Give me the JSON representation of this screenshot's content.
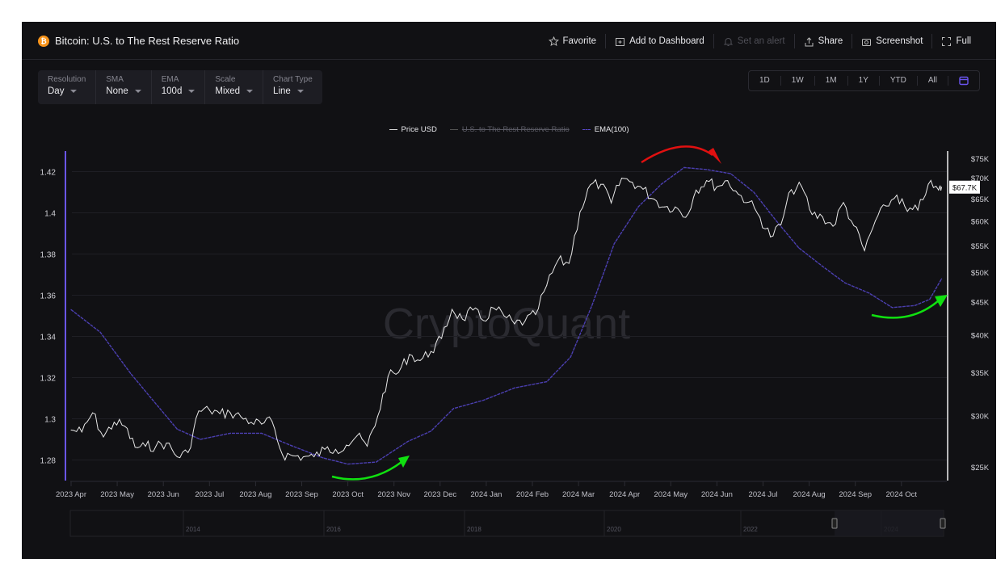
{
  "header": {
    "coin_icon": "bitcoin-icon",
    "title": "Bitcoin: U.S. to The Rest Reserve Ratio",
    "actions": [
      {
        "icon": "star-icon",
        "label": "Favorite",
        "enabled": true
      },
      {
        "icon": "folder-plus-icon",
        "label": "Add to Dashboard",
        "enabled": true
      },
      {
        "icon": "bell-icon",
        "label": "Set an alert",
        "enabled": false
      },
      {
        "icon": "share-icon",
        "label": "Share",
        "enabled": true
      },
      {
        "icon": "camera-icon",
        "label": "Screenshot",
        "enabled": true
      },
      {
        "icon": "fullscreen-icon",
        "label": "Full",
        "enabled": true
      }
    ]
  },
  "controls": [
    {
      "label": "Resolution",
      "value": "Day"
    },
    {
      "label": "SMA",
      "value": "None"
    },
    {
      "label": "EMA",
      "value": "100d"
    },
    {
      "label": "Scale",
      "value": "Mixed"
    },
    {
      "label": "Chart Type",
      "value": "Line"
    }
  ],
  "ranges": [
    "1D",
    "1W",
    "1M",
    "1Y",
    "YTD",
    "All"
  ],
  "watermark": "CryptoQuant",
  "colors": {
    "background": "#111114",
    "price": "#e8e8e8",
    "ratio": "#6a55f0",
    "ema": "#4b3fb0",
    "arrow_red": "#e01010",
    "arrow_green": "#10e010"
  },
  "chart_data": {
    "type": "line",
    "legend": [
      {
        "name": "Price USD",
        "visible": true
      },
      {
        "name": "U.S. to The Rest Reserve Ratio",
        "visible": false
      },
      {
        "name": "EMA(100)",
        "visible": true
      }
    ],
    "legend_position": "top-center",
    "x_ticks": [
      "2023 Apr",
      "2023 May",
      "2023 Jun",
      "2023 Jul",
      "2023 Aug",
      "2023 Sep",
      "2023 Oct",
      "2023 Nov",
      "2023 Dec",
      "2024 Jan",
      "2024 Feb",
      "2024 Mar",
      "2024 Apr",
      "2024 May",
      "2024 Jun",
      "2024 Jul",
      "2024 Aug",
      "2024 Sep",
      "2024 Oct"
    ],
    "left_axis": {
      "ticks": [
        "1.28",
        "1.3",
        "1.32",
        "1.34",
        "1.36",
        "1.38",
        "1.4",
        "1.42"
      ],
      "range": [
        1.27,
        1.43
      ]
    },
    "right_axis": {
      "scale": "log",
      "ticks": [
        "$25K",
        "$30K",
        "$35K",
        "$40K",
        "$45K",
        "$50K",
        "$55K",
        "$60K",
        "$65K",
        "$70K",
        "$75K"
      ],
      "range": [
        23800,
        77000
      ],
      "last_value_label": "$67.7K"
    },
    "grid": true,
    "price_usd": {
      "axis": "right",
      "dates": [
        "2023-04-01",
        "2023-04-08",
        "2023-04-15",
        "2023-04-22",
        "2023-04-29",
        "2023-05-06",
        "2023-05-13",
        "2023-05-20",
        "2023-05-27",
        "2023-06-03",
        "2023-06-10",
        "2023-06-17",
        "2023-06-24",
        "2023-07-01",
        "2023-07-08",
        "2023-07-15",
        "2023-07-22",
        "2023-07-29",
        "2023-08-05",
        "2023-08-12",
        "2023-08-19",
        "2023-08-26",
        "2023-09-02",
        "2023-09-09",
        "2023-09-16",
        "2023-09-23",
        "2023-09-30",
        "2023-10-07",
        "2023-10-14",
        "2023-10-21",
        "2023-10-28",
        "2023-11-04",
        "2023-11-11",
        "2023-11-18",
        "2023-11-25",
        "2023-12-02",
        "2023-12-09",
        "2023-12-16",
        "2023-12-23",
        "2023-12-30",
        "2024-01-06",
        "2024-01-13",
        "2024-01-20",
        "2024-01-27",
        "2024-02-03",
        "2024-02-10",
        "2024-02-17",
        "2024-02-24",
        "2024-03-02",
        "2024-03-09",
        "2024-03-16",
        "2024-03-23",
        "2024-03-30",
        "2024-04-06",
        "2024-04-13",
        "2024-04-20",
        "2024-04-27",
        "2024-05-04",
        "2024-05-11",
        "2024-05-18",
        "2024-05-25",
        "2024-06-01",
        "2024-06-08",
        "2024-06-15",
        "2024-06-22",
        "2024-06-29",
        "2024-07-06",
        "2024-07-13",
        "2024-07-20",
        "2024-07-27",
        "2024-08-03",
        "2024-08-10",
        "2024-08-17",
        "2024-08-24",
        "2024-08-31",
        "2024-09-07",
        "2024-09-14",
        "2024-09-21",
        "2024-09-28",
        "2024-10-05",
        "2024-10-12",
        "2024-10-19",
        "2024-10-26",
        "2024-10-28"
      ],
      "values": [
        28500,
        28300,
        30300,
        27800,
        29300,
        28900,
        26800,
        26900,
        26900,
        27200,
        25900,
        26300,
        30500,
        30600,
        30200,
        30300,
        29900,
        29300,
        29100,
        29400,
        26100,
        26000,
        25900,
        25900,
        26600,
        26600,
        27000,
        27900,
        26900,
        29900,
        34500,
        35000,
        37300,
        36500,
        37700,
        39500,
        43800,
        42300,
        43700,
        42100,
        44000,
        42800,
        41600,
        42000,
        43000,
        47700,
        52100,
        51600,
        62000,
        68300,
        68400,
        64000,
        69900,
        68900,
        67200,
        64900,
        63100,
        63100,
        60800,
        67000,
        69300,
        67800,
        69300,
        66000,
        64200,
        60800,
        56700,
        59200,
        67100,
        67800,
        61400,
        60900,
        58900,
        64100,
        59000,
        54000,
        60000,
        63300,
        65800,
        62100,
        62400,
        68400,
        67000,
        67700
      ]
    },
    "ema_100": {
      "axis": "left",
      "dates": [
        "2023-04-01",
        "2023-04-20",
        "2023-05-10",
        "2023-05-25",
        "2023-06-10",
        "2023-06-25",
        "2023-07-15",
        "2023-08-05",
        "2023-08-25",
        "2023-09-15",
        "2023-10-01",
        "2023-10-20",
        "2023-11-10",
        "2023-11-25",
        "2023-12-10",
        "2023-12-30",
        "2024-01-20",
        "2024-02-10",
        "2024-02-25",
        "2024-03-10",
        "2024-03-25",
        "2024-04-10",
        "2024-04-25",
        "2024-05-10",
        "2024-05-25",
        "2024-06-10",
        "2024-06-25",
        "2024-07-10",
        "2024-07-25",
        "2024-08-10",
        "2024-08-25",
        "2024-09-10",
        "2024-09-25",
        "2024-10-10",
        "2024-10-20",
        "2024-10-28"
      ],
      "values": [
        1.353,
        1.342,
        1.322,
        1.309,
        1.295,
        1.29,
        1.293,
        1.293,
        1.287,
        1.281,
        1.278,
        1.279,
        1.289,
        1.294,
        1.305,
        1.309,
        1.315,
        1.318,
        1.33,
        1.355,
        1.385,
        1.403,
        1.414,
        1.422,
        1.421,
        1.419,
        1.41,
        1.396,
        1.383,
        1.374,
        1.366,
        1.361,
        1.354,
        1.355,
        1.358,
        1.368
      ]
    },
    "navigator_ticks": [
      "2014",
      "2016",
      "2018",
      "2020",
      "2022",
      "2024"
    ]
  }
}
